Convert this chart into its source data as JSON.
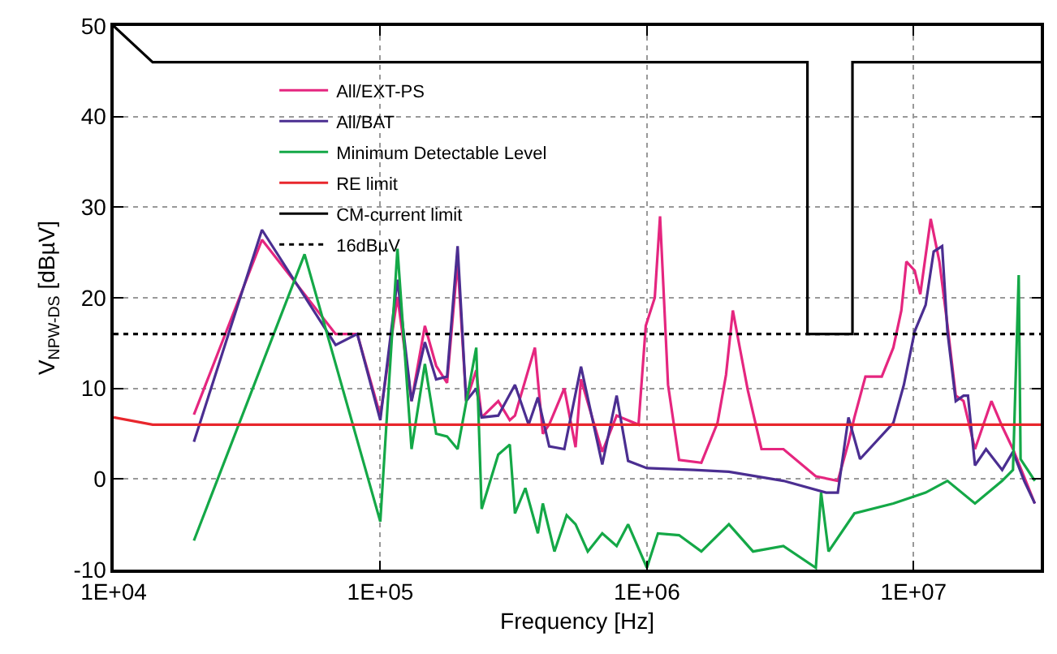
{
  "chart_data": {
    "type": "line",
    "xlabel": "Frequency [Hz]",
    "ylabel": "V$_{NPW-DS}$ [dBµV]",
    "log": "x",
    "xlim": [
      10000,
      30000000
    ],
    "xticks": [
      {
        "value": 10000,
        "label": "1E+04"
      },
      {
        "value": 100000,
        "label": "1E+05"
      },
      {
        "value": 1000000,
        "label": "1E+06"
      },
      {
        "value": 10000000,
        "label": "1E+07"
      }
    ],
    "ylim": [
      -10,
      50
    ],
    "yticks": [
      -10,
      0,
      10,
      20,
      30,
      40,
      50
    ],
    "grid": true,
    "legend": "top left",
    "series": [
      {
        "name": "All/EXT-PS",
        "color": "#e5267f",
        "x": [
          20000,
          36000,
          68000,
          82000,
          100000,
          116000,
          131000,
          147000,
          162000,
          178000,
          195000,
          210000,
          229000,
          240000,
          277000,
          306000,
          320000,
          380000,
          407000,
          430000,
          490000,
          540000,
          566000,
          680000,
          770000,
          930000,
          990000,
          1070000,
          1120000,
          1200000,
          1320000,
          1600000,
          1840000,
          1980000,
          2100000,
          2230000,
          2390000,
          2690000,
          3250000,
          4300000,
          5200000,
          5700000,
          6000000,
          6600000,
          7600000,
          8400000,
          9000000,
          9400000,
          10100000,
          10600000,
          11600000,
          12500000,
          13400000,
          14400000,
          15400000,
          17000000,
          19600000,
          21500000,
          23600000,
          28500000
        ],
        "values": [
          7.1,
          26.4,
          16.0,
          16.0,
          7.0,
          20.1,
          8.6,
          16.9,
          12.5,
          10.6,
          24,
          8.6,
          12,
          6.8,
          8.6,
          6.5,
          7,
          14.5,
          5,
          6,
          10,
          3.5,
          11,
          3,
          7,
          6,
          16.9,
          20,
          29.0,
          10.4,
          2.1,
          1.8,
          6.2,
          11.5,
          18.6,
          14.5,
          9.8,
          3.3,
          3.3,
          0.3,
          -0.2,
          4,
          6.8,
          11.3,
          11.3,
          14.5,
          18.6,
          24.0,
          23,
          20.4,
          28.7,
          24,
          17,
          9.2,
          8.6,
          3.3,
          8.6,
          5.8,
          3.3,
          -2.7
        ]
      },
      {
        "name": "All/BAT",
        "color": "#4b2e91",
        "x": [
          20000,
          36000,
          68000,
          82000,
          100000,
          116000,
          131000,
          147000,
          162000,
          178000,
          195000,
          210000,
          229000,
          240000,
          277000,
          320000,
          360000,
          390000,
          430000,
          490000,
          566000,
          680000,
          770000,
          850000,
          1000000,
          1500000,
          2030000,
          3250000,
          4700000,
          5200000,
          5700000,
          6300000,
          8400000,
          9200000,
          10100000,
          11100000,
          11900000,
          12800000,
          13400000,
          14400000,
          15400000,
          16000000,
          17000000,
          18700000,
          21500000,
          23600000,
          26000000,
          28500000
        ],
        "values": [
          4.1,
          27.5,
          14.8,
          16.0,
          6.5,
          22,
          8.6,
          15.1,
          11,
          11.3,
          25.7,
          8.6,
          10,
          6.8,
          7,
          10.4,
          6,
          9,
          3.6,
          3.3,
          12.4,
          1.6,
          9.2,
          2,
          1.2,
          1.0,
          0.8,
          -0.2,
          -1.5,
          -1.5,
          6.8,
          2.2,
          6.2,
          10.4,
          16.3,
          19.2,
          25.1,
          25.7,
          16.3,
          8.6,
          9.2,
          9.2,
          1.5,
          3.3,
          1.0,
          3.0,
          -0.2,
          -2.7
        ]
      },
      {
        "name": "Minimum Detectable Level",
        "color": "#14a847",
        "x": [
          20000,
          52000,
          100000,
          116000,
          131000,
          147000,
          162000,
          178000,
          195000,
          229000,
          240000,
          277000,
          306000,
          320000,
          350000,
          390000,
          407000,
          450000,
          500000,
          540000,
          600000,
          680000,
          770000,
          850000,
          1000000,
          1100000,
          1320000,
          1600000,
          2030000,
          2500000,
          3250000,
          4300000,
          4500000,
          4800000,
          6000000,
          8400000,
          11100000,
          13400000,
          17000000,
          21500000,
          23600000,
          24800000,
          25200000,
          28500000
        ],
        "values": [
          -6.8,
          24.8,
          -4.7,
          25.4,
          3.3,
          12.7,
          5.0,
          4.7,
          3.3,
          14.5,
          -3.3,
          2.7,
          3.8,
          -3.8,
          -1,
          -6,
          -2.7,
          -8,
          -4,
          -5.0,
          -8,
          -6,
          -7.4,
          -5,
          -9.8,
          -6,
          -6.2,
          -8,
          -5.0,
          -8,
          -7.4,
          -9.8,
          -1.5,
          -8,
          -3.8,
          -2.7,
          -1.5,
          -0.2,
          -2.7,
          -0.2,
          1.0,
          22.5,
          2.2,
          -0.2
        ]
      },
      {
        "name": "RE limit",
        "color": "#e8262c",
        "x": [
          10000,
          14000,
          30000000
        ],
        "values": [
          6.8,
          6,
          6
        ]
      },
      {
        "name": "CM-current limit",
        "color": "#000000",
        "x": [
          10000,
          14000,
          4000000,
          4000000,
          5900000,
          5900000,
          30000000
        ],
        "values": [
          50,
          46,
          46,
          16,
          16,
          46,
          46
        ]
      }
    ],
    "ref_lines": [
      {
        "axis": "y",
        "value": 16,
        "label": "16dBµV",
        "color": "#000000",
        "line_style": "dotted"
      }
    ]
  }
}
